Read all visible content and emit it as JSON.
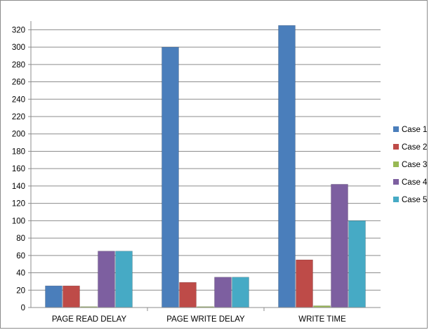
{
  "chart_data": {
    "type": "bar",
    "categories": [
      "PAGE READ DELAY",
      "PAGE WRITE DELAY",
      "WRITE TIME"
    ],
    "series": [
      {
        "name": "Case 1",
        "color": "#4a7ebb",
        "values": [
          25,
          300,
          325
        ]
      },
      {
        "name": "Case 2",
        "color": "#be4b48",
        "values": [
          25,
          29,
          55
        ]
      },
      {
        "name": "Case 3",
        "color": "#98b954",
        "values": [
          1,
          1,
          2
        ]
      },
      {
        "name": "Case 4",
        "color": "#7d5fa0",
        "values": [
          65,
          35,
          142
        ]
      },
      {
        "name": "Case 5",
        "color": "#46aac5",
        "values": [
          65,
          35,
          100
        ]
      }
    ],
    "ylim": [
      0,
      330
    ],
    "yticks": [
      0,
      20,
      40,
      60,
      80,
      100,
      120,
      140,
      160,
      180,
      200,
      220,
      240,
      260,
      280,
      300,
      320
    ],
    "grid": true,
    "legend_position": "right",
    "title": "",
    "xlabel": "",
    "ylabel": ""
  }
}
